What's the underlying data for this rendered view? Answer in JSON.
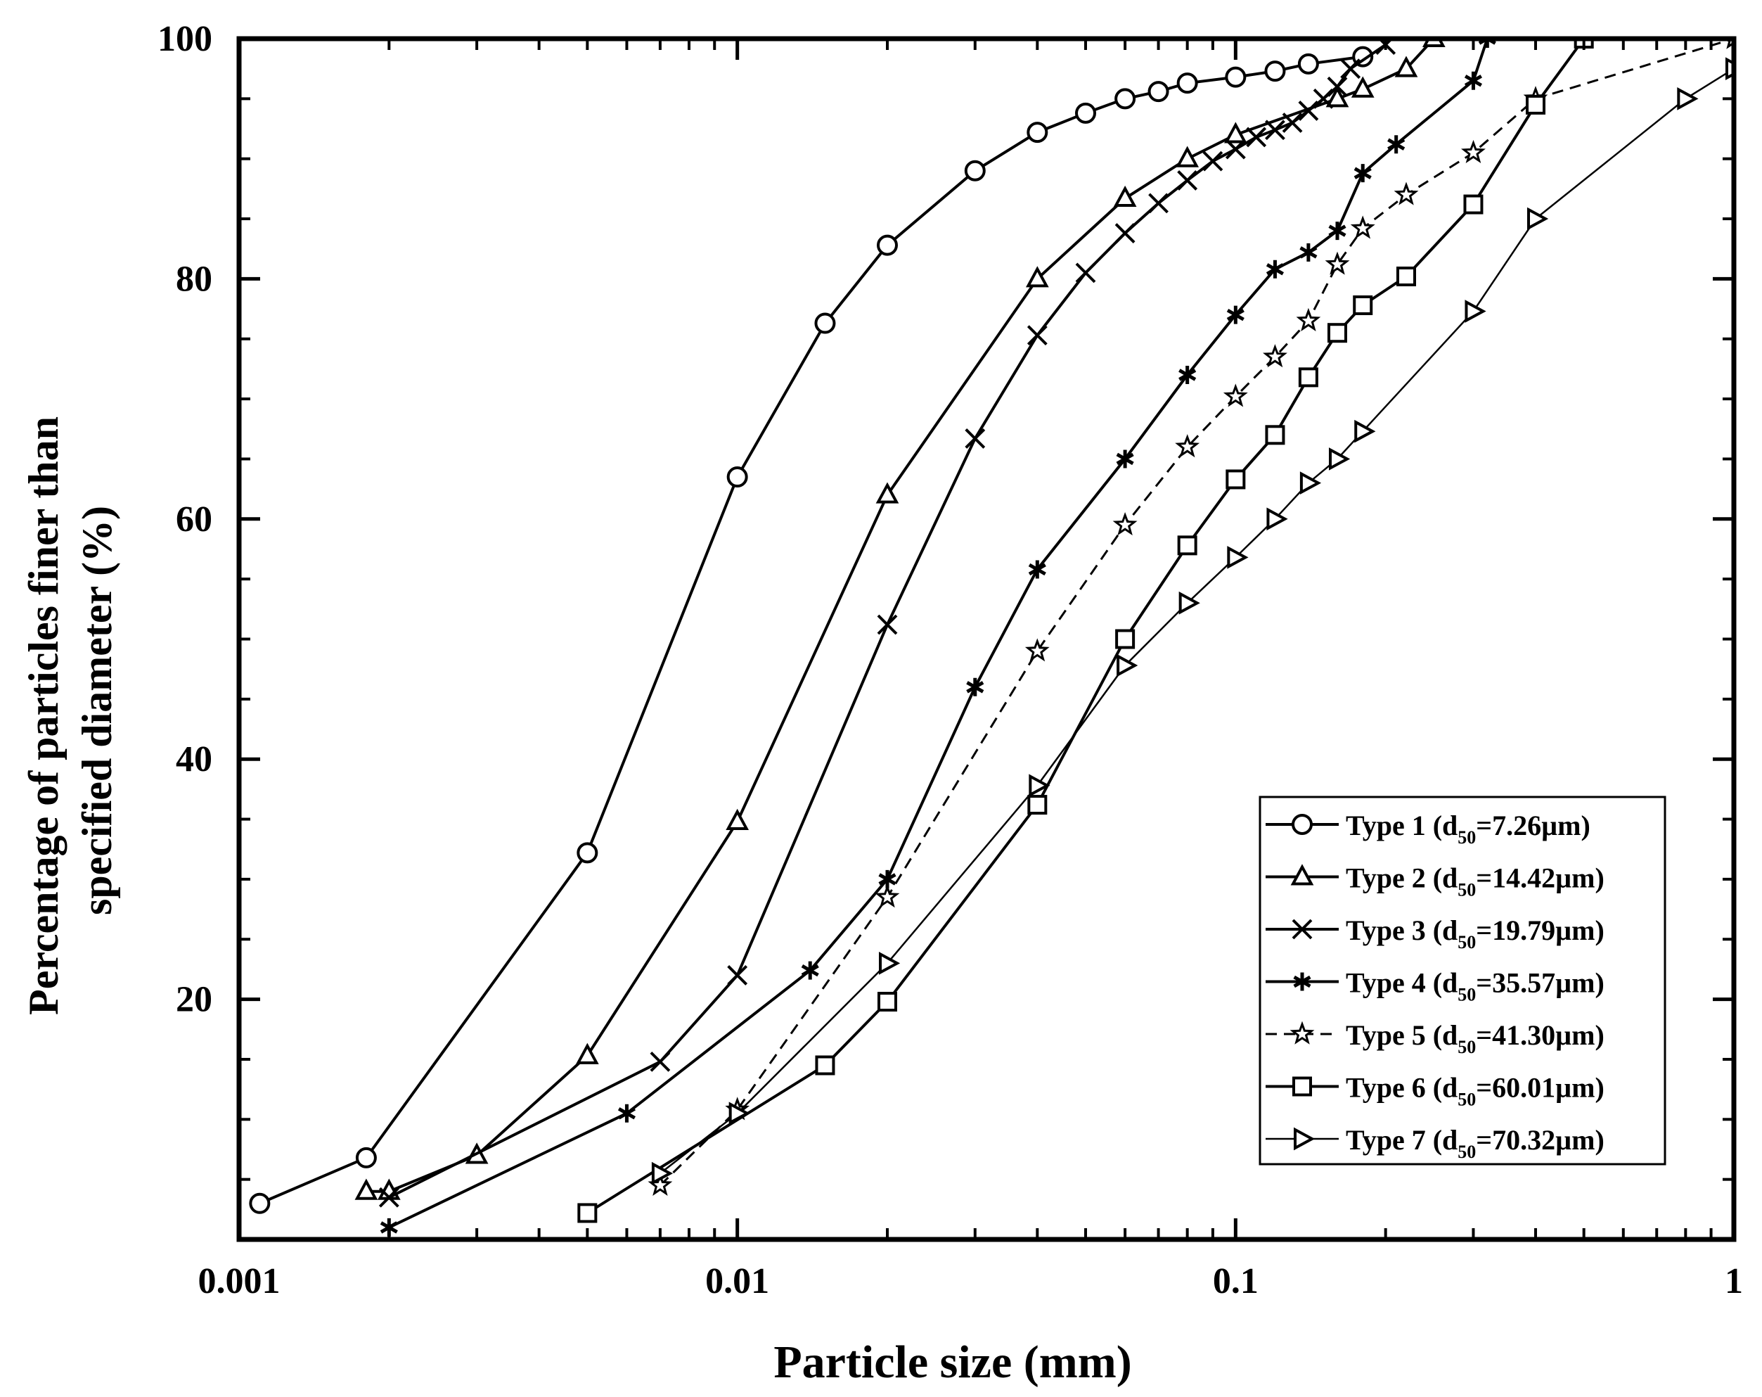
{
  "chart_data": {
    "type": "line",
    "xlabel": "Particle size (mm)",
    "ylabel_lines": [
      "Percentage of particles finer than",
      "specified diameter (%)"
    ],
    "x_scale": "log",
    "xlim": [
      0.001,
      1
    ],
    "ylim": [
      0,
      100
    ],
    "x_ticks": [
      0.001,
      0.01,
      0.1,
      1
    ],
    "x_tick_labels": [
      "0.001",
      "0.01",
      "0.1",
      "1"
    ],
    "y_ticks": [
      20,
      40,
      60,
      80,
      100
    ],
    "y_tick_labels": [
      "20",
      "40",
      "60",
      "80",
      "100"
    ],
    "grid": false,
    "legend_position": "bottom-right",
    "series": [
      {
        "name": "Type 1 (d50=7.26µm)",
        "label_prefix": "Type 1 (d",
        "label_sub": "50",
        "label_suffix": "=7.26µm)",
        "marker": "circle",
        "line": "solid",
        "x": [
          0.0011,
          0.0018,
          0.005,
          0.01,
          0.015,
          0.02,
          0.03,
          0.04,
          0.05,
          0.06,
          0.07,
          0.08,
          0.1,
          0.12,
          0.14,
          0.18
        ],
        "y": [
          3,
          6.8,
          32.2,
          63.5,
          76.3,
          82.8,
          89,
          92.2,
          93.8,
          95,
          95.6,
          96.3,
          96.8,
          97.3,
          97.9,
          98.5
        ]
      },
      {
        "name": "Type 2 (d50=14.42µm)",
        "label_prefix": "Type 2 (d",
        "label_sub": "50",
        "label_suffix": "=14.42µm)",
        "marker": "triangle-up",
        "line": "solid",
        "x": [
          0.0018,
          0.002,
          0.003,
          0.005,
          0.01,
          0.02,
          0.04,
          0.06,
          0.08,
          0.1,
          0.16,
          0.18,
          0.22,
          0.25
        ],
        "y": [
          4,
          4,
          7,
          15.3,
          34.8,
          62,
          80,
          86.7,
          90,
          92,
          95,
          95.8,
          97.5,
          100
        ]
      },
      {
        "name": "Type 3 (d50=19.79µm)",
        "label_prefix": "Type 3 (d",
        "label_sub": "50",
        "label_suffix": "=19.79µm)",
        "marker": "x",
        "line": "solid",
        "x": [
          0.002,
          0.007,
          0.01,
          0.02,
          0.03,
          0.04,
          0.05,
          0.06,
          0.07,
          0.08,
          0.09,
          0.1,
          0.11,
          0.12,
          0.13,
          0.14,
          0.15,
          0.16,
          0.17,
          0.2
        ],
        "y": [
          3.5,
          14.8,
          22,
          51.2,
          66.7,
          75.3,
          80.5,
          83.8,
          86.3,
          88.2,
          89.8,
          90.8,
          91.8,
          92.4,
          93,
          94,
          95,
          96,
          97.5,
          99.5
        ]
      },
      {
        "name": "Type 4 (d50=35.57µm)",
        "label_prefix": "Type 4 (d",
        "label_sub": "50",
        "label_suffix": "=35.57µm)",
        "marker": "asterisk",
        "line": "solid",
        "x": [
          0.002,
          0.006,
          0.014,
          0.02,
          0.03,
          0.04,
          0.06,
          0.08,
          0.1,
          0.12,
          0.14,
          0.16,
          0.18,
          0.21,
          0.3,
          0.32
        ],
        "y": [
          1,
          10.5,
          22.4,
          30,
          46,
          55.8,
          65,
          72,
          77,
          80.8,
          82.2,
          84,
          88.8,
          91.2,
          96.5,
          100
        ]
      },
      {
        "name": "Type 5 (d50=41.30µm)",
        "label_prefix": "Type 5 (d",
        "label_sub": "50",
        "label_suffix": "=41.30µm)",
        "marker": "star",
        "line": "dashed",
        "x": [
          0.007,
          0.01,
          0.02,
          0.04,
          0.06,
          0.08,
          0.1,
          0.12,
          0.14,
          0.16,
          0.18,
          0.22,
          0.3,
          0.4,
          1
        ],
        "y": [
          4.5,
          10.8,
          28.5,
          49,
          59.5,
          66,
          70.2,
          73.5,
          76.5,
          81.2,
          84.2,
          87,
          90.5,
          95,
          100
        ]
      },
      {
        "name": "Type 6 (d50=60.01µm)",
        "label_prefix": "Type 6 (d",
        "label_sub": "50",
        "label_suffix": "=60.01µm)",
        "marker": "square",
        "line": "solid",
        "x": [
          0.005,
          0.015,
          0.02,
          0.04,
          0.06,
          0.08,
          0.1,
          0.12,
          0.14,
          0.16,
          0.18,
          0.22,
          0.3,
          0.4,
          0.5
        ],
        "y": [
          2.2,
          14.5,
          19.8,
          36.2,
          50,
          57.8,
          63.3,
          67,
          71.8,
          75.5,
          77.8,
          80.2,
          86.2,
          94.5,
          100
        ]
      },
      {
        "name": "Type 7 (d50=70.32µm)",
        "label_prefix": "Type 7 (d",
        "label_sub": "50",
        "label_suffix": "=70.32µm)",
        "marker": "triangle-right",
        "line": "thin",
        "x": [
          0.007,
          0.01,
          0.02,
          0.04,
          0.06,
          0.08,
          0.1,
          0.12,
          0.14,
          0.16,
          0.18,
          0.3,
          0.4,
          0.8,
          1
        ],
        "y": [
          5.5,
          10.5,
          23,
          37.8,
          47.8,
          53,
          56.8,
          60,
          63,
          65,
          67.3,
          77.3,
          85,
          95,
          97.5
        ]
      }
    ]
  }
}
